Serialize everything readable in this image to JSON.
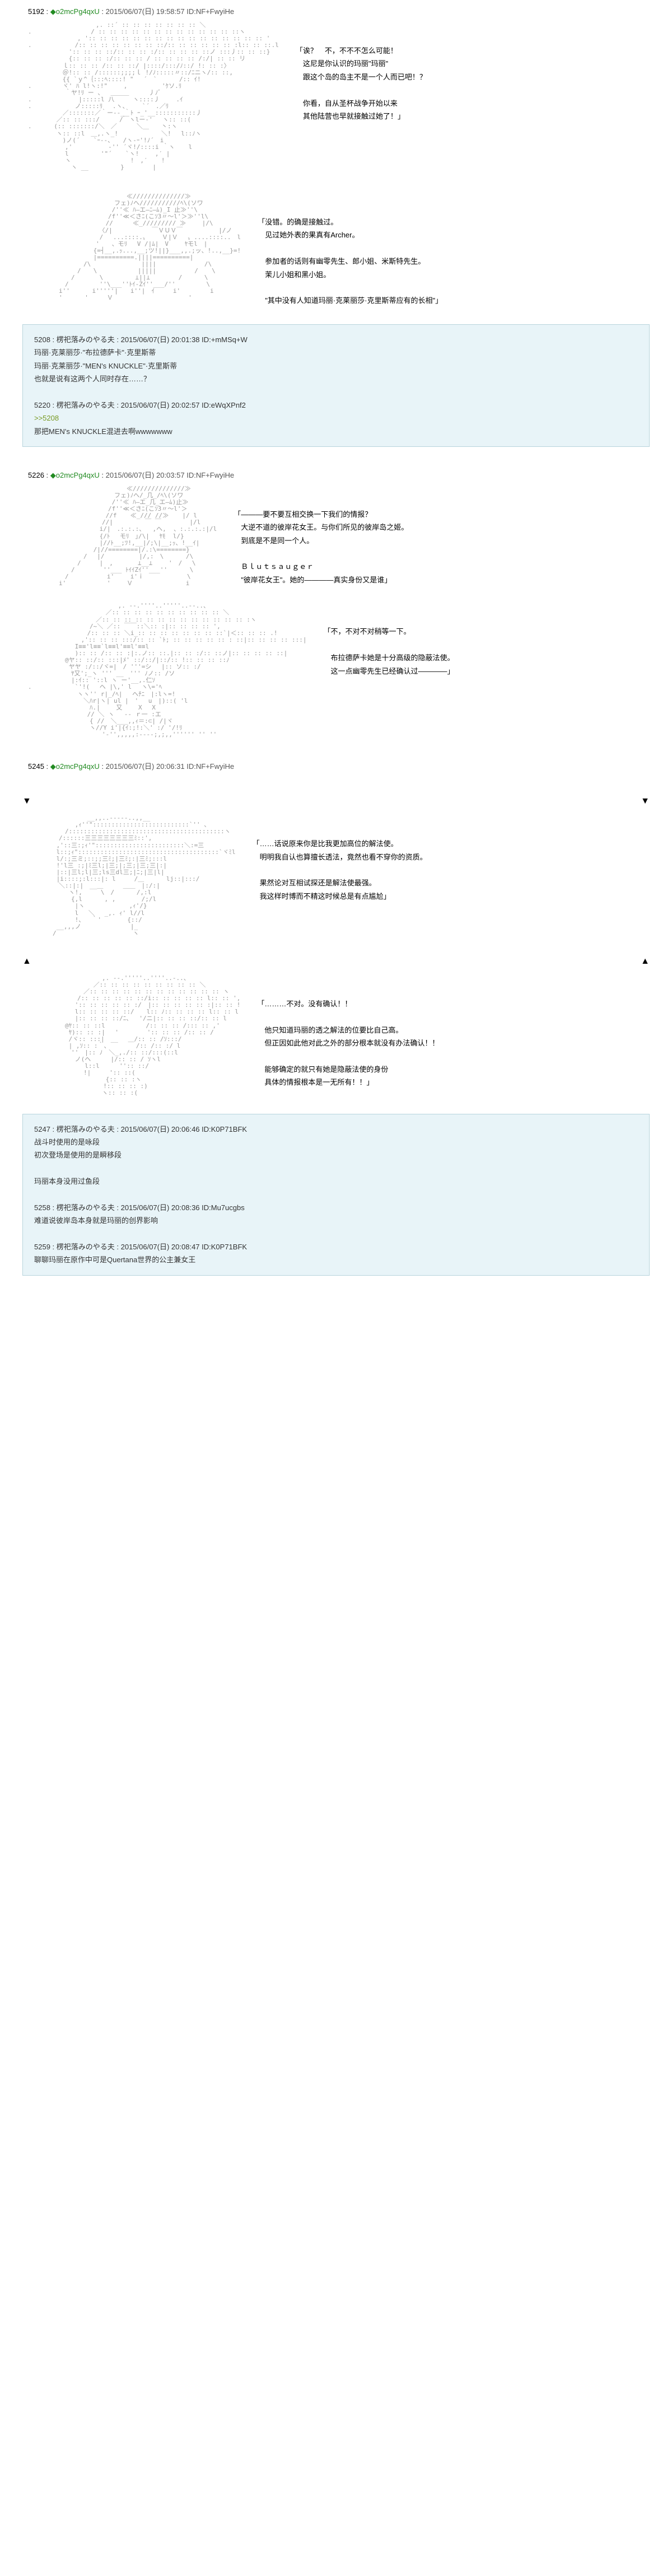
{
  "posts": [
    {
      "num": "5192",
      "trip": "◆o2mcPg4qxU",
      "date": "2015/06/07(日) 19:58:57",
      "id": "ID:NF+FwyiHe",
      "aa": "　　　　　　　　　　　,. ::´ :: :: :: :: :: :: :: ＼\n.　　　　　　　　　 / :: :: :: :: :: :: :: :: :: :: :: :: ::ヽ\n　　　　　　　　, ':: :: :: :: :: :: :: :: :: :: :: :: :: :: :: :: '\n.　　　　　　　/:: :: :: :: :: :: :: ::/:: :: :: :: :: :: :l:: :: ::.l\n　　　　　　 ':: :: :: ::/:: :: :: :/:: :: :: :: ::ノ :::丿:: :: ::}\n　　　　　　 {:: :: :: :/:: :: :: / :: :: :: :: /:/| :: :: リ\n　　　　　 ｌ:: :: :: /:: :: ::/ |::::/:::/ﾉ::/ !: :: :〉\n　　　　　 ＠!:: :: /::::::;;;;ｌ !/ﾉ:::::〃::/ﾆニヽ/:: ::,\n　　　　　 {{ `ｙ^｛:::ﾍ::::! \"　 ´　`　　　 /:: ｲ!\n.　　　　　ヾ' ﾊ l!ヽ:!\"　　 ,　　　　　 'ｹソ.ﾘ\n　　　　　　｀ヤ!ﾘ ー 、　 ＿＿＿ 　　 丿ﾉﾞ\n.　　　　　　　 |:::::l 八　　　ヽ::::丿 　　.ｲ\n.　　　　　　　ノ:::::ﾘ 　.ヽ、 　 `´　.／ﾘ\n　　　　　 ／:::::::／｀ー--_｀ﾄ ｰ_'__:::::::::::丿\n　　　　 ／:: :: :::/ 　　 /￣ヽlー‐' 　ヽ:: ::(\n.　　　 (:: :::::::/＼　／　 　 ＼＿　　丶:ヽ\n　　　　 ヽ:: ::l　＿,.ヽ_! 　 　 　 　 ＼!　 l::ﾉヽ\n　　　　　 )ノ(´ 　 `ｰ‐-、　　/ヽ-ｰ'!ﾉ´　i\n　　　　　　,'　　 　 　 ‐'' ´ヾ!/::::i ｀ヽ 　 l\n　　　　　　l　　　 　 '\"´ 　 `ヽ!　 　,′ |\n　　　　　　ヽ 　 　 　 　 　 　!　,′ 　 !\n　　　　　　　ヽ __ 　 　　　}　 　　　|",
      "dialogue": "「诶？　不，不不不怎么可能！\n　这尼是你认识的玛丽\"玛丽\"\n　跟这个岛的岛主不是一个人而已吧！？\n\n　你看，自从圣杯战争开始以来\n　其他陆营也早就接触过她了！」"
    },
    {
      "num": "",
      "aa": "　　　　　　　　　　　　　　　　≪//////////////≫\n　　　　　　　　　　　　　　フェ)ﾉへ///////////ﾍ\\(ソワ\n　　　　　　　　　　　　　 /''≪ ﾊ―エ―ﾆ―ﾑ)_I 止≫''\\\n　　　　　　　　　　　　　/f''≪＜さﾆ(こｿ3〃～l'＞≫''l\\\n　　　　　　　　　　　　 // 　 　≪_///////// ≫　 　|/\\\n　　　　　　　　　　　　〈/|　 　 　 　 ￣ＶＵＶ￣　 　　 　 |/ノ\n　　　　　　　　　　　 / 　...::::.〟　　 Ｖ|Ｖ　 〟....::::..　l\n　　　　　　　　　　　'　　、モﾘ 　V /|ﾑ|　V　　 ﾔモl　|\n　　　　　　　　　　 {=┤__,.ｯ...,__;ツ!||}___,,.;ッ、!..,__}=!\n　　　　　　　　　　 |==========.||||==========|\n　　　　　　　　　/\\ 　　　　　　　 |||| 　　　　　 　 /\\\n　　　　　　　　/　　\\　　　　　　 |||||　 　　　　 / 　 \\\n　　　　　　　/　　　　\\　 　 　　⊥||⊥　　　 　/　 　　\\\n　　　　　　/　　　　　''\\___''ﾄｲ-Zｲ''___/''　　　　　\\\n　　　　　i''　　　 i'''''|　　i''|　ｲ　　　i' 　　 　 i\n　　　　　'　　　 '　　　Ｖ　　 　　　　　　　　　 '",
      "dialogue": "「没错。的确是接触过。\n　见过她外表的果真有Archer。\n\n　参加者的话则有幽零先生、郎小姐、米斯特先生。\n　茉儿小姐和黑小姐。\n\n　\"其中没有人知道玛丽·克莱丽莎·克里斯蒂应有的长相\"」"
    }
  ],
  "quotebox1": {
    "line1": "5208 : 楞祀落みのやる夫 : 2015/06/07(日) 20:01:38 ID:+mMSq+W",
    "line2": "玛丽·克莱丽莎·\"布拉德萨卡\"·克里斯蒂",
    "line3": "玛丽·克莱丽莎·\"MEN's KNUCKLE\"·克里斯蒂",
    "line4": "也就是说有这两个人同时存在……？",
    "line5": "5220 : 楞祀落みのやる夫 : 2015/06/07(日) 20:02:57 ID:eWqXPnf2",
    "line6": ">>5208",
    "line7": "那把MEN's KNUCKLE混进去啊wwwwwww"
  },
  "post2": {
    "num": "5226",
    "trip": "◆o2mcPg4qxU",
    "date": "2015/06/07(日) 20:03:57",
    "id": "ID:NF+FwyiHe"
  },
  "aa2a": "　　　　　　　　　　　　　　　　≪//////////////≫\n　　　　　　　　　　　　　　フェ)ﾉへ/_几_/ﾍ\\(ソワ\n　　　　　　　　　　　　　 /''≪ ﾊ―エ_几_エ―ﾑ)止≫\n　　　　　　　　　　　　　/f''≪＜さﾆ(こｿ3〃～l'＞\n　　　　　　　　　　　　 //f 　 ≪_/// //≫ 　 |/ l\n　　　　　　　　　　　　//|　 　　　 ￣ ￣ 　　　　|/l\n　　　　　　　　　　　 i/|　.:.:.:、  ,ヘ,  、:.:.:.:|/l\n　　　　　　　　　　　 {/ﾄ　 モﾘ　｣/\\| 　ﾔﾓ  l/}\n　　　　　　　　　　　 |//ﾄ__;ﾂ!,__|/;\\|__;ｯ、!__ｲ|\n　　　　　　　　　　 /|//========|/.:\\========}\n　　　　　　　　　/　 |/　 　　　　|/,:　\\　　　 /\\\n　　　　　　　　/　　　|　,　　　　⊥__⊥　 　'　/ 　\\\n　　　　　　　/　　　　 ''___ ﾄｲｲZｲ''___''　　　 \\\n　　　　　　/　　 　　　 i' 　　i'ｉ　　　　　　　\\\n　　　　　i'　　　　　　 '　　 Ｖ　　　　　　　　 i",
  "dialogue2a": "「———要不要互相交换一下我们的情报？\n　大逆不道的彼岸花女王。与你们所见的彼岸岛之姬。\n　到底是不是同一个人。\n\n　Ｂｌｕｔｓａｕｇｅｒ\n　\"彼岸花女王\"。她的————真实身份又是谁」",
  "aa2b": "　　　　　　　　　　　　　　 ,. -‐.''''..'''''..‐-..、\n　　　　　　　　　　　　 ／:: :: :: :: :: :: :: :: :: :: ＼\n　　　　　　　　　　　／:: :: :: :: :: :: :: :: :: :: :: :: :: :ヽ\n　　　　　　　　　　/~＼ ／:: ￣￣::＼:: :|:: :: :: :: ',\n　　　　　　　　　 /:: :: :: ＼i_:: :: :: :: :: :: :: ::`|＜:: :: :: .!\n　　　　　　　　 ,':: :: :: :::/:: :: `ﾄ; :: :: :: :: :: : ::|:: :: :: :: :::|\n　　　　　　　 I≡≡'l≡≡`l≡≡l'≡≡l'≡≡l\n　　　　　　　 ):: :: /:: :: :|:.ノ:: ::.|:: :: :/:: ::ノ|:: :: :: :: ::|\n　　　　　　@ヤ:: ::/:: :::|ﾒ' ::/::/|::/:: !:: :: :: ::ﾉ\n　　　　　　 ヤヤ :/::/ヾ=|　/ '''=シ　 |:: ソ:: :/\n　　　　　　　ﾔ又';_ヽ ''' __　''' ﾉノ:: /ソ\n　　　　　　　|:ｲ:: '::l ヽ ー'__,.仁ｿ\n.　　　　　　　`'!(　 ヘ |\\,' l 　ヽ\\='ﾍ\n　　　　　　　　ヽヽ'' r|_/ﾍ| 　ヘﾁﾆ　|:lヽ=!\n　　　　　　　　　＼ﾊr|ヽ| ul |　'　 u　|)::( 'l\n　　　　　　　　　　ﾊ.|　　 又　 　X 　X\n　　　　　　　　　 // ＼ ヽ　 -- ｒ一 :エ\n　　　　　　　　　　{ //　＼___,,ｨ＝:⊂| /|ヾ\n　　　　　　　　　　ヽ//Y i'|{ｲ:;!:＼' :/ '/!ﾘ\n　　　　　　　　　　　　'-'',,,,,:----;,;,,'''''' '' ''",
  "dialogue2b": "「不，不对不对稍等一下。\n\n　布拉德萨卡她是十分高级的隐蔽法使。\n　这一点幽零先生已经确认过————」",
  "post3": {
    "num": "5245",
    "trip": "◆o2mcPg4qxU",
    "date": "2015/06/07(日) 20:06:31",
    "id": "ID:NF+FwyiHe"
  },
  "aa3a": "　　　　　　　　　 __,,..-----..,,__\n　　　　　　　 ,ｨ''\"::::::::::::::::::::::::::`'' 、\n　　　　　　/::::::::::::::::::::::::::::::::::::::::::ヽ\n　　　　　/::::::三三三三三三三三ﾐ::',\n　　　　 ,'::三:;ｨ'\"::::::::::::::::::::::::＼:=三\n　　　　 l::;ｨ\"::::::::::::::::::::::::::::::::::::::`ヾﾐl\n　　　　 l/:;三ミ;::;;三ﾐ;|三ﾐ;:|三ﾐ;:::l\n　　　　 !'l三 :;|ﾐ三l;|三;|;三;|三;三|:|\n　　　　 |::|三l;l|三;ls三dl三;|ﾆ;|三|l|\n　　　　 |i::::;:l:::|: l　　　/＿　　　 lj::|:::/\n　　　　　＼::|:|　__＿　 　 ＿＿　|:/:|\n　　　　　　 ヽ!,　　　\\　/　　　 /,:l\n　　　　　　　{,l　　　 , ,　 　 　/;/l\n　　　　　　　 |ヽ　 　　　　　 ,ｨ'/}\n　　　　　　　 l　 ＼　 _,. ｨ' l//l\n　　　　　　　 !、　 ｀'　　 　 {::/\n　　　　 __,,,ノ　 　 　 　 　 |_\n　　　　/　　　　　　 　 　 　 　ヽ",
  "dialogue3a": "「……话说原来你是比我更加高位的解法使。\n　明明我自认也算擅长透法，竟然也看不穿你的资质。\n\n　果然论对互相试探还是解法使最强。\n　我这样时博而不精这时候总是有点尴尬」",
  "aa3b": "　　　　　　　　　　　　,. -‐.'''''..''''..-..、\n　　　　　　　　　　 ／:: :: :: :: :: :: :: :: :: ＼\n　　　　　　　　　／:: :: :: :: :: :: :: :: :: :: :: :: ヽ\n　　　　　　　　/:: :: :: :: :: ::/i:: :: :: :: :: l:: :: ',\n　　　　　　　 ':: :: :: :: :: :/　|:: :: :: :: :: :|:: :: !\n　　　　　　　 l:: :: :: :: ::/　　l:: ﾉ:: :: :: :: l:: :: l\n　　　　　　　 |:: :: :: ::/ﾆ、　 '/ニ|:: :: :: ::/:: :: l\n　　　　　　@ﾔ:: :: ::l　　　　　　 /:: :: :: /::: :: ,'\n　　　　　　 ﾔ):: :: :|　 '　　　　 ':: :: :: /:: :: /\n　　　　　　 /ヾ:: :::|　__　 ＿/:: :: /ｿ:::/\n　　　　　　 | ,ｿ:: :｀、 　　　 /:: /:: :/ l\n　　　　　　　''　|:: ﾉ　＼_,./:: ::/:::(::l\n　　　　　　　 ノ(ヘ　 　 |/:: :: / ｿヽl\n　　　　　　　 　 l::l　 　 '':: ::/\n　　　　　　　　　!|　　　':: ::(\n　　　　　　　　　　　 　{:: :: :ヽ\n　　　　　　　　　　 　 !:: :: :: :)\n　　　　　　　　　　　　ヽ:: :: :(",
  "dialogue3b": "「………不对。没有确认！！\n\n　他只知道玛丽的透之解法的位要比自己高。\n　但正因如此他对此之外的部分根本就没有办法确认！！\n\n　能够确定的就只有她是隐蔽法使的身份\n　具体的情报根本是一无所有！！」",
  "quotebox2": {
    "line1": "5247 : 楞祀落みのやる夫 : 2015/06/07(日) 20:06:46 ID:K0P71BFK",
    "line2": "战斗时使用的是咏段",
    "line3": "初次登场是使用的是瞬移段",
    "line4": "玛丽本身没用过鱼段",
    "line5": "5258 : 楞祀落みのやる夫 : 2015/06/07(日) 20:08:36 ID:Mu7ucgbs",
    "line6": "难道说彼岸岛本身就是玛丽的创界影响",
    "line7": "5259 : 楞祀落みのやる夫 : 2015/06/07(日) 20:08:47 ID:K0P71BFK",
    "line8": "聊聊玛丽在原作中可是Quertana世界的公主兼女王"
  },
  "colors": {
    "quotebox_bg": "#e8f4f8",
    "quotebox_border": "#b8d4dc",
    "trip_color": "#228b22",
    "aa_color": "#999999",
    "ref_color": "#789922"
  }
}
